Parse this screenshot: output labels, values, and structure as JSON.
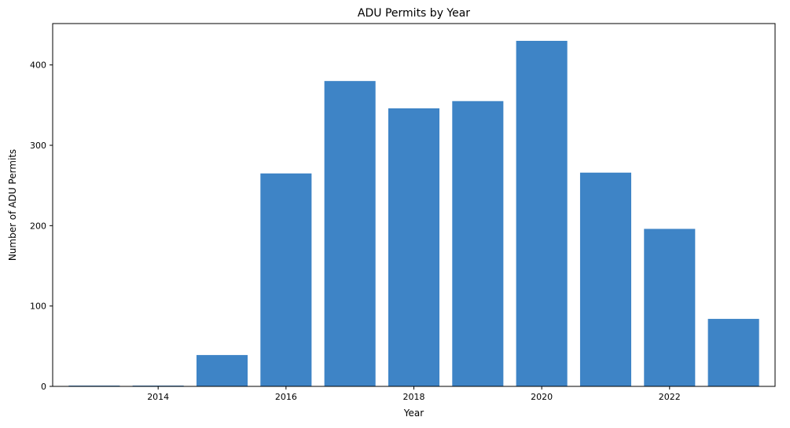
{
  "chart_data": {
    "type": "bar",
    "title": "ADU Permits by Year",
    "xlabel": "Year",
    "ylabel": "Number of ADU Permits",
    "x": [
      2013,
      2014,
      2015,
      2016,
      2017,
      2018,
      2019,
      2020,
      2021,
      2022,
      2023
    ],
    "values": [
      1,
      1,
      39,
      265,
      380,
      346,
      355,
      430,
      266,
      196,
      84
    ],
    "xlim": [
      2012.35,
      2023.65
    ],
    "ylim": [
      0,
      451.5
    ],
    "xticks": [
      2014,
      2016,
      2018,
      2020,
      2022
    ],
    "yticks": [
      0,
      100,
      200,
      300,
      400
    ],
    "bar_color": "#3e84c6",
    "grid": false,
    "legend": "none"
  }
}
